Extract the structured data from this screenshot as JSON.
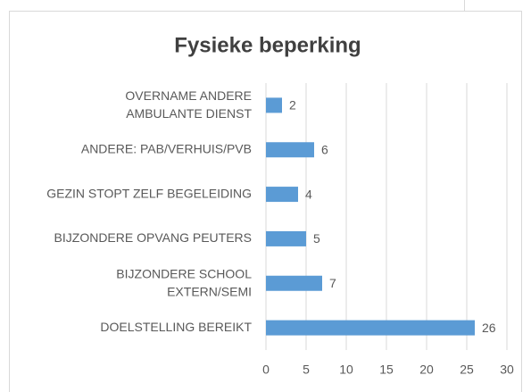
{
  "chart_data": {
    "type": "bar",
    "orientation": "horizontal",
    "title": "Fysieke beperking",
    "categories": [
      "OVERNAME ANDERE AMBULANTE DIENST",
      "ANDERE: PAB/VERHUIS/PVB",
      "GEZIN STOPT ZELF BEGELEIDING",
      "BIJZONDERE OPVANG PEUTERS",
      "BIJZONDERE SCHOOL EXTERN/SEMI",
      "DOELSTELLING BEREIKT"
    ],
    "values": [
      2,
      6,
      4,
      5,
      7,
      26
    ],
    "color": "#5b9bd5",
    "xlim": [
      0,
      30
    ],
    "xticks": [
      0,
      5,
      10,
      15,
      20,
      25,
      30
    ],
    "grid": true
  }
}
